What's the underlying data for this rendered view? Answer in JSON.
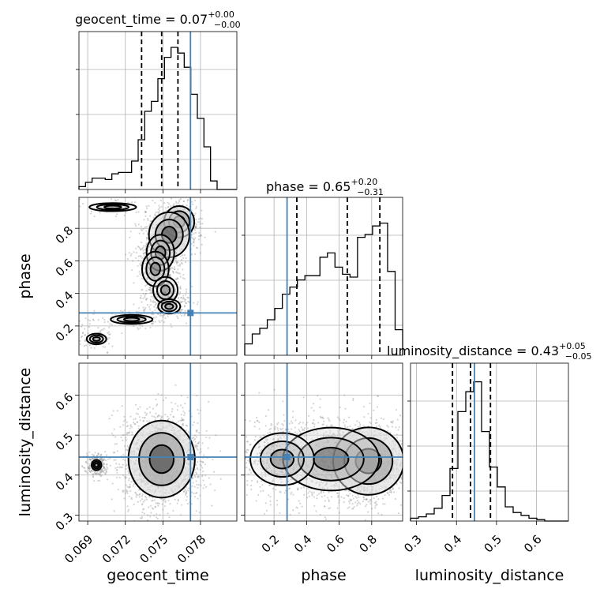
{
  "chart_data": {
    "type": "corner",
    "parameters": [
      "geocent_time",
      "phase",
      "luminosity_distance"
    ],
    "truth": {
      "geocent_time": 0.0772,
      "phase": 0.28,
      "luminosity_distance": 0.445
    },
    "colors": {
      "truth": "#4682b4",
      "hist": "#000000",
      "grid": "#b0b0b0"
    },
    "titles": [
      {
        "param": "geocent_time",
        "text": "geocent_time = 0.07",
        "plus": "+0.00",
        "minus": "−0.00",
        "median": 0.0749,
        "q16": 0.0733,
        "q84": 0.0762
      },
      {
        "param": "phase",
        "text": "phase = 0.65",
        "plus": "+0.20",
        "minus": "−0.31",
        "median": 0.65,
        "q16": 0.34,
        "q84": 0.85
      },
      {
        "param": "luminosity_distance",
        "text": "luminosity_distance = 0.43",
        "plus": "+0.05",
        "minus": "−0.05",
        "median": 0.435,
        "q16": 0.39,
        "q84": 0.485
      }
    ],
    "ranges": {
      "geocent_time": [
        0.0683,
        0.0809
      ],
      "phase": [
        0.02,
        0.99
      ],
      "luminosity_distance": [
        0.285,
        0.68
      ]
    },
    "ticks": {
      "geocent_time": [
        "0.069",
        "0.072",
        "0.075",
        "0.078"
      ],
      "phase": [
        "0.2",
        "0.4",
        "0.6",
        "0.8"
      ],
      "luminosity_distance": [
        "0.3",
        "0.4",
        "0.5",
        "0.6"
      ]
    },
    "tick_values": {
      "geocent_time": [
        0.069,
        0.072,
        0.075,
        0.078
      ],
      "phase": [
        0.2,
        0.4,
        0.6,
        0.8
      ],
      "luminosity_distance": [
        0.3,
        0.4,
        0.5,
        0.6
      ]
    },
    "histograms": {
      "geocent_time": {
        "edges_range": [
          0.0683,
          0.0809
        ],
        "counts": [
          0.02,
          0.05,
          0.08,
          0.08,
          0.07,
          0.11,
          0.12,
          0.12,
          0.2,
          0.35,
          0.55,
          0.62,
          0.78,
          0.93,
          1.0,
          0.96,
          0.86,
          0.67,
          0.5,
          0.3,
          0.06,
          0.0,
          0.0,
          0.0
        ]
      },
      "phase": {
        "edges_range": [
          0.02,
          0.99
        ],
        "counts": [
          0.08,
          0.15,
          0.19,
          0.25,
          0.33,
          0.43,
          0.48,
          0.53,
          0.56,
          0.56,
          0.69,
          0.72,
          0.62,
          0.57,
          0.55,
          0.83,
          0.85,
          0.91,
          0.93,
          0.59,
          0.18
        ]
      },
      "luminosity_distance": {
        "edges_range": [
          0.285,
          0.68
        ],
        "counts": [
          0.02,
          0.03,
          0.05,
          0.09,
          0.18,
          0.37,
          0.77,
          0.91,
          0.98,
          0.63,
          0.38,
          0.24,
          0.1,
          0.06,
          0.04,
          0.02,
          0.01,
          0.0,
          0.0,
          0.0
        ]
      }
    },
    "panels": [
      {
        "x": "geocent_time",
        "y": "phase",
        "density": [
          {
            "x": 0.0763,
            "y": 0.84,
            "sx": 0.0005,
            "sy": 0.04,
            "w": 1.0
          },
          {
            "x": 0.0755,
            "y": 0.76,
            "sx": 0.0007,
            "sy": 0.06,
            "w": 0.9
          },
          {
            "x": 0.0748,
            "y": 0.65,
            "sx": 0.0006,
            "sy": 0.06,
            "w": 0.5
          },
          {
            "x": 0.0744,
            "y": 0.55,
            "sx": 0.0006,
            "sy": 0.06,
            "w": 0.45
          },
          {
            "x": 0.0752,
            "y": 0.42,
            "sx": 0.0006,
            "sy": 0.05,
            "w": 0.35
          },
          {
            "x": 0.0755,
            "y": 0.32,
            "sx": 0.0006,
            "sy": 0.03,
            "w": 0.25
          },
          {
            "x": 0.0725,
            "y": 0.24,
            "sx": 0.0012,
            "sy": 0.02,
            "w": 0.2
          },
          {
            "x": 0.0697,
            "y": 0.12,
            "sx": 0.0006,
            "sy": 0.025,
            "w": 0.15
          },
          {
            "x": 0.071,
            "y": 0.93,
            "sx": 0.0015,
            "sy": 0.02,
            "w": 0.12
          }
        ]
      },
      {
        "x": "geocent_time",
        "y": "luminosity_distance",
        "density": [
          {
            "x": 0.0749,
            "y": 0.44,
            "sx": 0.0011,
            "sy": 0.04,
            "w": 1.0
          },
          {
            "x": 0.0697,
            "y": 0.425,
            "sx": 0.0003,
            "sy": 0.01,
            "w": 0.15
          }
        ]
      },
      {
        "x": "phase",
        "y": "luminosity_distance",
        "density": [
          {
            "x": 0.78,
            "y": 0.435,
            "sx": 0.09,
            "sy": 0.035,
            "w": 1.0
          },
          {
            "x": 0.55,
            "y": 0.44,
            "sx": 0.15,
            "sy": 0.04,
            "w": 0.6
          },
          {
            "x": 0.25,
            "y": 0.44,
            "sx": 0.12,
            "sy": 0.04,
            "w": 0.35
          }
        ]
      }
    ]
  }
}
